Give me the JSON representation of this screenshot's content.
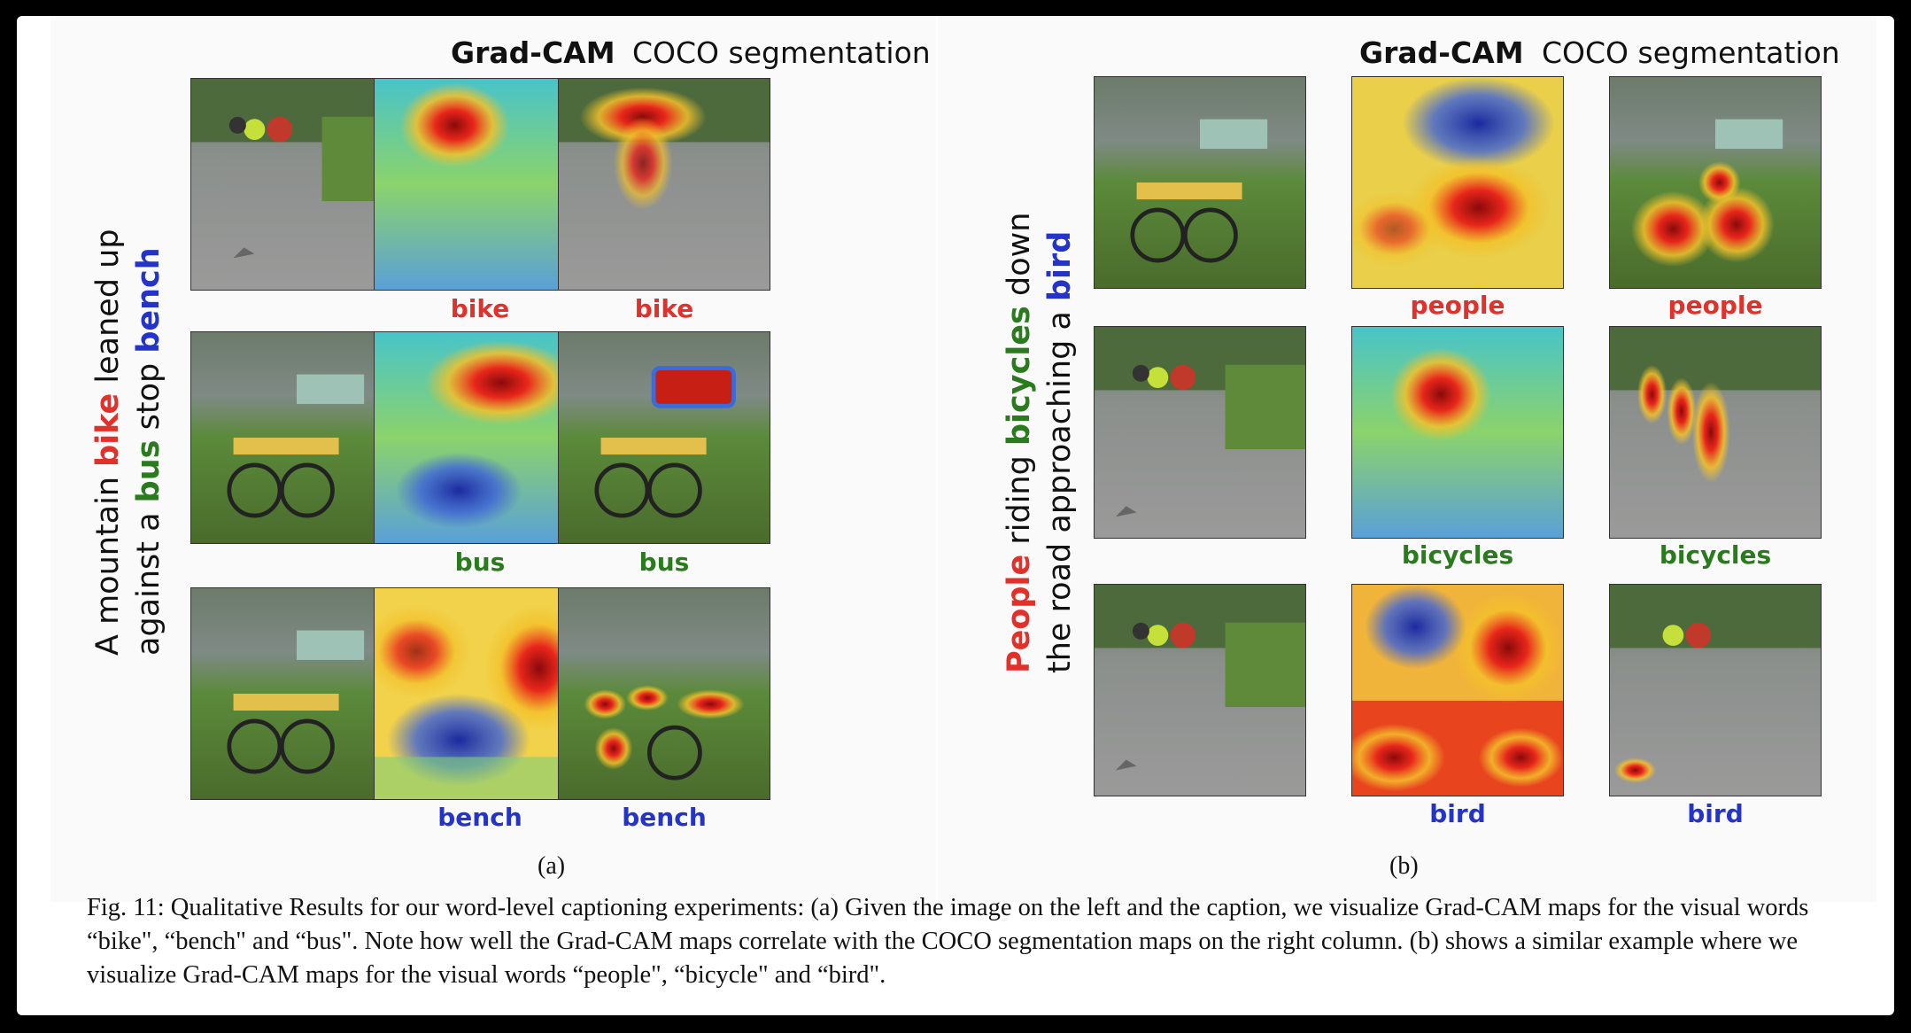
{
  "panel_a": {
    "col_gradcam": "Grad-CAM",
    "col_coco": "COCO segmentation",
    "caption_parts": [
      "A mountain ",
      "bike",
      " leaned up",
      "against a ",
      "bus",
      " stop ",
      "bench"
    ],
    "rows": [
      {
        "gradcam_label": "bike",
        "coco_label": "bike"
      },
      {
        "gradcam_label": "bus",
        "coco_label": "bus"
      },
      {
        "gradcam_label": "bench",
        "coco_label": "bench"
      }
    ],
    "sublabel": "(a)"
  },
  "panel_b": {
    "col_gradcam": "Grad-CAM",
    "col_coco": "COCO segmentation",
    "caption_parts": [
      "People",
      " riding ",
      "bicycles",
      " down",
      "the road approaching a ",
      "bird"
    ],
    "rows": [
      {
        "gradcam_label": "people",
        "coco_label": "people"
      },
      {
        "gradcam_label": "bicycles",
        "coco_label": "bicycles"
      },
      {
        "gradcam_label": "bird",
        "coco_label": "bird"
      }
    ],
    "sublabel": "(b)"
  },
  "figure_caption": "Fig. 11: Qualitative Results for our word-level captioning experiments: (a) Given the image on the left and the caption, we visualize Grad-CAM maps for the visual words “bike\", “bench\" and “bus\". Note how well the Grad-CAM maps correlate with the COCO segmentation maps on the right column. (b) shows a similar example where we visualize Grad-CAM maps for the visual words “people\", “bicycle\" and “bird\".",
  "colors": {
    "red": "#e0312b",
    "green": "#2a7a1e",
    "blue": "#2434c9"
  }
}
